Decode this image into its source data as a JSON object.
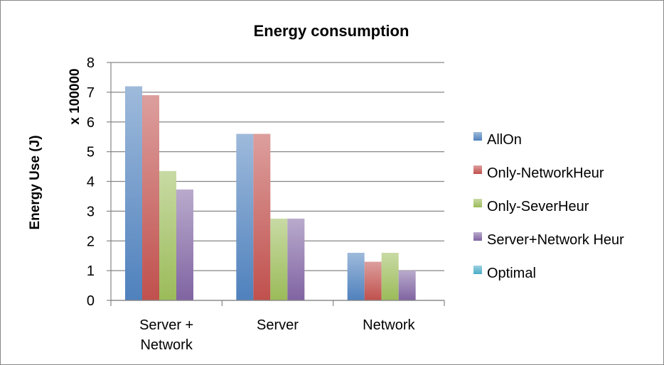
{
  "chart_data": {
    "type": "bar",
    "title": "Energy consumption",
    "ylabel": "Energy Use (J)",
    "yunit": "x 100000",
    "xlabel": "",
    "categories": [
      [
        "Server +",
        "Network"
      ],
      [
        "Server"
      ],
      [
        "Network"
      ]
    ],
    "ylim": [
      0,
      8
    ],
    "yticks": [
      "0",
      "1",
      "2",
      "3",
      "4",
      "5",
      "6",
      "7",
      "8"
    ],
    "grid": true,
    "legend_position": "right",
    "series": [
      {
        "name": "AllOn",
        "color": "#4f81bd",
        "values": [
          7.2,
          5.6,
          1.6
        ]
      },
      {
        "name": "Only-NetworkHeur",
        "color": "#c0504d",
        "values": [
          6.9,
          5.6,
          1.3
        ]
      },
      {
        "name": "Only-SeverHeur",
        "color": "#9bbb59",
        "values": [
          4.35,
          2.75,
          1.6
        ]
      },
      {
        "name": "Server+Network Heur",
        "color": "#8064a2",
        "values": [
          3.73,
          2.75,
          1.0
        ]
      },
      {
        "name": "Optimal",
        "color": "#4bacc6",
        "values": [
          0,
          0,
          0
        ]
      }
    ]
  }
}
